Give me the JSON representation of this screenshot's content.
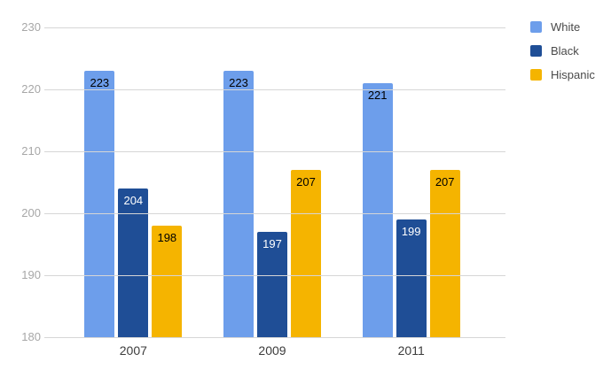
{
  "chart_data": {
    "type": "bar",
    "title": "",
    "xlabel": "",
    "ylabel": "",
    "categories": [
      "2007",
      "2009",
      "2011"
    ],
    "series": [
      {
        "name": "White",
        "color": "#6d9eeb",
        "label_color": "#000000",
        "values": [
          223,
          223,
          221
        ]
      },
      {
        "name": "Black",
        "color": "#1f4e96",
        "label_color": "#ffffff",
        "values": [
          204,
          197,
          199
        ]
      },
      {
        "name": "Hispanic",
        "color": "#f5b400",
        "label_color": "#000000",
        "values": [
          198,
          207,
          207
        ]
      }
    ],
    "ylim": [
      180,
      230
    ],
    "yticks": [
      180,
      190,
      200,
      210,
      220,
      230
    ],
    "grid": true,
    "data_labels_shown": true,
    "legend_position": "right",
    "background_color": "#ffffff",
    "gridline_color": "#d6d6d6",
    "axis_text_color": "#a7a7a7",
    "category_text_color": "#3c3c3c"
  }
}
